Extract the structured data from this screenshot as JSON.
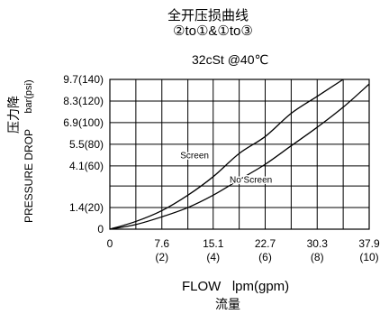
{
  "header": {
    "title_cn": "全开压损曲线",
    "subtitle": "②to①&①to③",
    "condition": "32cSt @40℃"
  },
  "axes": {
    "y_label_cn": "压力降",
    "y_label_en": "PRESSURE DROP",
    "y_unit": "bar(psi)",
    "x_label_en": "FLOW   lpm(gpm)",
    "x_label_cn": "流量"
  },
  "chart_data": {
    "type": "line",
    "x_ticks": [
      {
        "value": 0,
        "label": "0",
        "sub": ""
      },
      {
        "value": 7.6,
        "label": "7.6",
        "sub": "(2)"
      },
      {
        "value": 15.1,
        "label": "15.1",
        "sub": "(4)"
      },
      {
        "value": 22.7,
        "label": "22.7",
        "sub": "(6)"
      },
      {
        "value": 30.3,
        "label": "30.3",
        "sub": "(8)"
      },
      {
        "value": 37.9,
        "label": "37.9",
        "sub": "(10)"
      }
    ],
    "y_ticks": [
      {
        "value": 0,
        "label": "0"
      },
      {
        "value": 1.4,
        "label": "1.4(20)"
      },
      {
        "value": 2.8,
        "label": ""
      },
      {
        "value": 4.1,
        "label": "4.1(60)"
      },
      {
        "value": 5.5,
        "label": "5.5(80)"
      },
      {
        "value": 6.9,
        "label": "6.9(100)"
      },
      {
        "value": 8.3,
        "label": "8.3(120)"
      },
      {
        "value": 9.7,
        "label": "9.7(140)"
      }
    ],
    "xlim": [
      0,
      37.9
    ],
    "ylim": [
      0,
      9.7
    ],
    "x_grid": [
      0,
      3.8,
      7.6,
      11.4,
      15.1,
      18.9,
      22.7,
      26.5,
      30.3,
      34.1,
      37.9
    ],
    "grid": true,
    "series": [
      {
        "name": "Screen",
        "color": "#000000",
        "x": [
          0,
          3.8,
          7.6,
          11.4,
          15.1,
          18.9,
          22.7,
          26.5,
          30.3,
          34.1
        ],
        "y": [
          0,
          0.5,
          1.2,
          2.2,
          3.4,
          4.9,
          6.0,
          7.5,
          8.6,
          9.7
        ]
      },
      {
        "name": "No Screen",
        "color": "#000000",
        "x": [
          0,
          3.8,
          7.6,
          11.4,
          15.1,
          18.9,
          22.7,
          26.5,
          30.3,
          34.1,
          37.9
        ],
        "y": [
          0,
          0.3,
          0.8,
          1.4,
          2.2,
          3.2,
          4.2,
          5.4,
          6.6,
          7.9,
          9.4
        ]
      }
    ],
    "annotations": [
      {
        "text": "Screen",
        "x": 10.3,
        "y": 4.6
      },
      {
        "text": "No Screen",
        "x": 17.5,
        "y": 3.0
      }
    ]
  }
}
